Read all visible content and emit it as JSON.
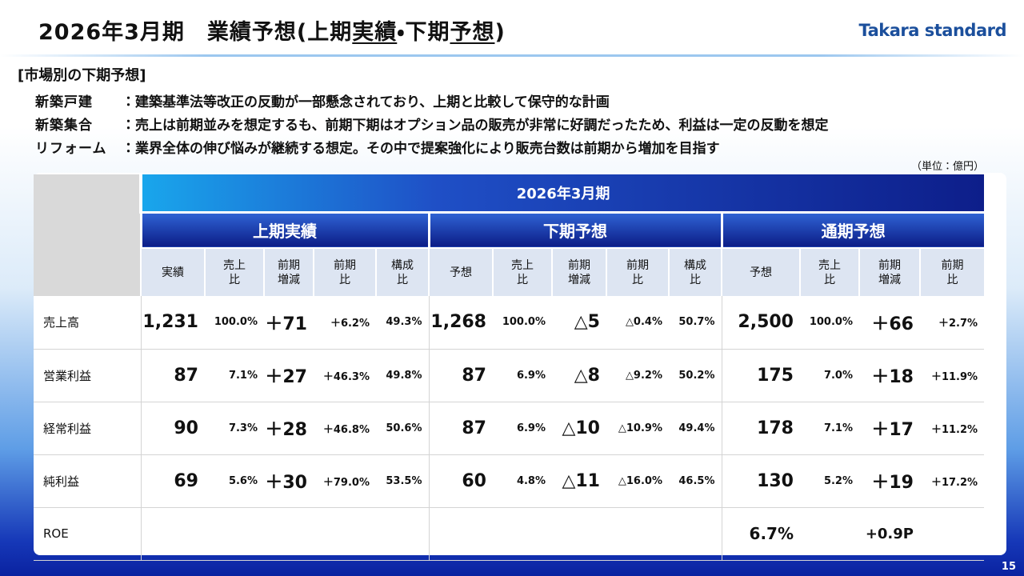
{
  "header": {
    "title": [
      "2026年3月期　業績予想(上期",
      "実績",
      "・下期",
      "予想",
      ")"
    ],
    "logo": "Takara standard"
  },
  "section": {
    "heading": "[市場別の下期予想]",
    "lines": [
      {
        "label": "新築戸建　",
        "text": "：建築基準法等改正の反動が一部懸念されており、上期と比較して保守的な計画"
      },
      {
        "label": "新築集合　",
        "text": "：売上は前期並みを想定するも、前期下期はオプション品の販売が非常に好調だったため、利益は一定の反動を想定"
      },
      {
        "label": "リフォーム",
        "text": "：業界全体の伸び悩みが継続する想定。その中で提案強化により販売台数は前期から増加を目指す"
      }
    ]
  },
  "unit": "（単位：億円）",
  "table": {
    "period": "2026年3月期",
    "groups": [
      {
        "name": "上期実績",
        "columns": [
          "実績",
          "売上比",
          "前期増減",
          "前期比",
          "構成比"
        ]
      },
      {
        "name": "下期予想",
        "columns": [
          "予想",
          "売上比",
          "前期増減",
          "前期比",
          "構成比"
        ]
      },
      {
        "name": "通期予想",
        "columns": [
          "予想",
          "売上比",
          "前期増減",
          "前期比"
        ]
      }
    ],
    "rows": [
      {
        "label": "売上高",
        "cells": [
          "1,231",
          "100.0%",
          "＋71",
          "＋6.2%",
          "49.3%",
          "1,268",
          "100.0%",
          "△5",
          "△0.4%",
          "50.7%",
          "2,500",
          "100.0%",
          "＋66",
          "＋2.7%"
        ]
      },
      {
        "label": "営業利益",
        "cells": [
          "87",
          "7.1%",
          "＋27",
          "＋46.3%",
          "49.8%",
          "87",
          "6.9%",
          "△8",
          "△9.2%",
          "50.2%",
          "175",
          "7.0%",
          "＋18",
          "＋11.9%"
        ]
      },
      {
        "label": "経常利益",
        "cells": [
          "90",
          "7.3%",
          "＋28",
          "＋46.8%",
          "50.6%",
          "87",
          "6.9%",
          "△10",
          "△10.9%",
          "49.4%",
          "178",
          "7.1%",
          "＋17",
          "＋11.2%"
        ]
      },
      {
        "label": "純利益",
        "cells": [
          "69",
          "5.6%",
          "＋30",
          "＋79.0%",
          "53.5%",
          "60",
          "4.8%",
          "△11",
          "△16.0%",
          "46.5%",
          "130",
          "5.2%",
          "＋19",
          "＋17.2%"
        ]
      }
    ],
    "roe": {
      "label": "ROE",
      "forecast": "6.7%",
      "change": "+0.9P"
    }
  },
  "page_number": "15"
}
